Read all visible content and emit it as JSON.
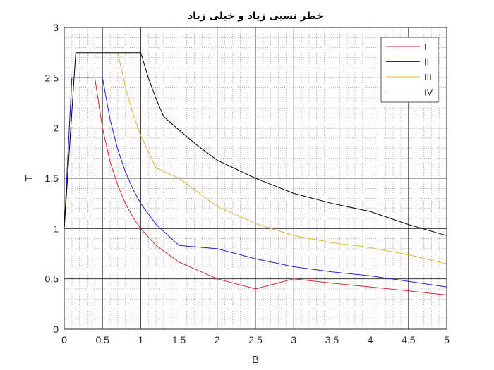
{
  "chart_data": {
    "type": "line",
    "title": "خطر نسبی زیاد و خیلی زیاد",
    "xlabel": "B",
    "ylabel": "T",
    "xlim": [
      0,
      5
    ],
    "ylim": [
      0,
      3
    ],
    "xticks": [
      0,
      0.5,
      1,
      1.5,
      2,
      2.5,
      3,
      3.5,
      4,
      4.5,
      5
    ],
    "xtick_labels": [
      "0",
      "0.5",
      "1",
      "1.5",
      "2",
      "2.5",
      "3",
      "3.5",
      "4",
      "4.5",
      "5"
    ],
    "yticks": [
      0,
      0.5,
      1,
      1.5,
      2,
      2.5,
      3
    ],
    "ytick_labels": [
      "0",
      "0.5",
      "1",
      "1.5",
      "2",
      "2.5",
      "3"
    ],
    "grid": "on (major and minor)",
    "legend_position": "top-right",
    "series": [
      {
        "name": "I",
        "color": "#d62728",
        "x": [
          0,
          0.1,
          0.4,
          0.5,
          0.6,
          0.7,
          0.8,
          0.9,
          1.0,
          1.2,
          1.5,
          2.0,
          2.5,
          3.0,
          3.5,
          4.0,
          4.5,
          5.0
        ],
        "y": [
          1.0,
          2.5,
          2.5,
          2.0,
          1.667,
          1.429,
          1.25,
          1.111,
          1.0,
          0.833,
          0.667,
          0.5,
          0.4,
          0.5,
          0.457,
          0.42,
          0.38,
          0.34
        ]
      },
      {
        "name": "II",
        "color": "#1f1fd6",
        "x": [
          0,
          0.1,
          0.5,
          0.6,
          0.7,
          0.8,
          0.9,
          1.0,
          1.2,
          1.5,
          2.0,
          2.5,
          3.0,
          3.5,
          4.0,
          4.5,
          5.0
        ],
        "y": [
          1.0,
          2.5,
          2.5,
          2.083,
          1.786,
          1.563,
          1.389,
          1.25,
          1.042,
          0.833,
          0.8,
          0.7,
          0.62,
          0.57,
          0.53,
          0.475,
          0.42
        ],
        "_note_ignore": ""
      },
      {
        "name": "III",
        "color": "#e0b43a",
        "x": [
          0.7,
          0.8,
          0.9,
          1.0,
          1.2,
          1.5,
          2.0,
          2.5,
          3.0,
          3.5,
          4.0,
          4.5,
          5.0
        ],
        "y": [
          2.75,
          2.406,
          2.139,
          1.925,
          1.604,
          1.5,
          1.22,
          1.05,
          0.93,
          0.86,
          0.81,
          0.74,
          0.65
        ]
      },
      {
        "name": "IV",
        "color": "#000000",
        "x": [
          0,
          0.15,
          1.0,
          1.1,
          1.2,
          1.3,
          1.5,
          1.75,
          2.0,
          2.5,
          3.0,
          3.5,
          4.0,
          4.5,
          5.0
        ],
        "y": [
          1.0,
          2.75,
          2.75,
          2.5,
          2.292,
          2.115,
          1.98,
          1.82,
          1.68,
          1.5,
          1.35,
          1.25,
          1.17,
          1.04,
          0.93
        ]
      }
    ]
  }
}
